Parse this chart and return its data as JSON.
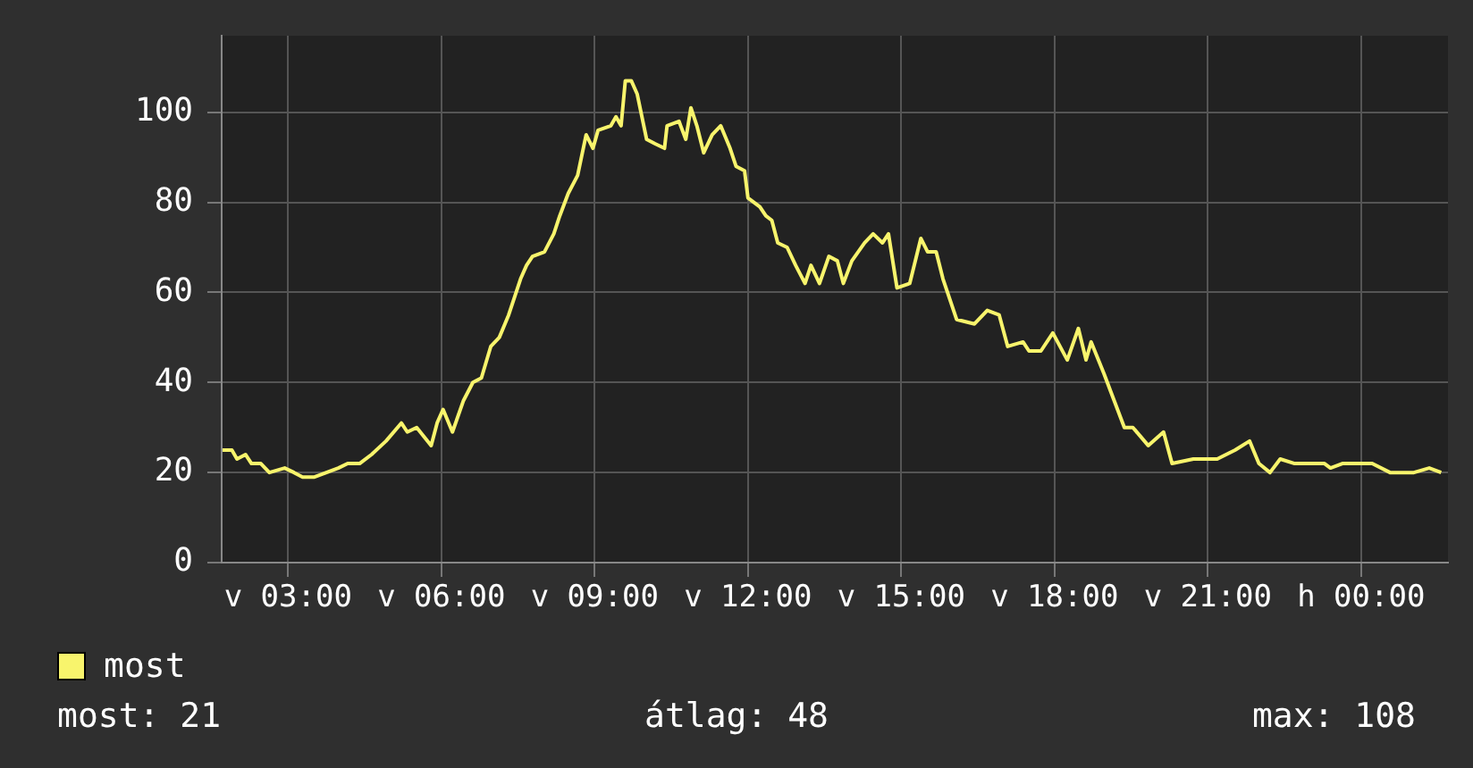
{
  "chart_data": {
    "type": "line",
    "x": [
      "--03-17T01:43",
      "--03-17T01:54",
      "--03-17T02:00",
      "--03-17T02:10",
      "--03-17T02:17",
      "--03-17T02:28",
      "--03-17T02:38",
      "--03-17T02:56",
      "--03-17T03:07",
      "--03-17T03:17",
      "--03-17T03:31",
      "--03-17T03:59",
      "--03-17T04:10",
      "--03-17T04:24",
      "--03-17T04:38",
      "--03-17T04:55",
      "--03-17T05:13",
      "--03-17T05:20",
      "--03-17T05:31",
      "--03-17T05:48",
      "--03-17T05:55",
      "--03-17T06:02",
      "--03-17T06:13",
      "--03-17T06:26",
      "--03-17T06:37",
      "--03-17T06:47",
      "--03-17T06:58",
      "--03-17T07:08",
      "--03-17T07:19",
      "--03-17T07:33",
      "--03-17T07:40",
      "--03-17T07:47",
      "--03-17T08:01",
      "--03-17T08:12",
      "--03-17T08:19",
      "--03-17T08:29",
      "--03-17T08:40",
      "--03-17T08:50",
      "--03-17T08:58",
      "--03-17T09:04",
      "--03-17T09:19",
      "--03-17T09:25",
      "--03-17T09:31",
      "--03-17T09:36",
      "--03-17T09:43",
      "--03-17T09:50",
      "--03-17T10:01",
      "--03-17T10:11",
      "--03-17T10:22",
      "--03-17T10:25",
      "--03-17T10:39",
      "--03-17T10:47",
      "--03-17T10:53",
      "--03-17T11:00",
      "--03-17T11:08",
      "--03-17T11:18",
      "--03-17T11:28",
      "--03-17T11:39",
      "--03-17T11:46",
      "--03-17T11:56",
      "--03-17T12:00",
      "--03-17T12:14",
      "--03-17T12:21",
      "--03-17T12:28",
      "--03-17T12:35",
      "--03-17T12:46",
      "--03-17T12:56",
      "--03-17T13:07",
      "--03-17T13:14",
      "--03-17T13:24",
      "--03-17T13:35",
      "--03-17T13:45",
      "--03-17T13:52",
      "--03-17T14:02",
      "--03-17T14:17",
      "--03-17T14:27",
      "--03-17T14:38",
      "--03-17T14:45",
      "--03-17T14:55",
      "--03-17T15:10",
      "--03-17T15:23",
      "--03-17T15:31",
      "--03-17T15:41",
      "--03-17T15:49",
      "--03-17T16:05",
      "--03-17T16:26",
      "--03-17T16:41",
      "--03-17T16:55",
      "--03-17T17:05",
      "--03-17T17:23",
      "--03-17T17:30",
      "--03-17T17:44",
      "--03-17T17:58",
      "--03-17T18:15",
      "--03-17T18:28",
      "--03-17T18:37",
      "--03-17T18:43",
      "--03-17T18:58",
      "--03-17T19:08",
      "--03-17T19:22",
      "--03-17T19:32",
      "--03-17T19:50",
      "--03-17T20:08",
      "--03-17T20:18",
      "--03-17T20:43",
      "--03-17T21:11",
      "--03-17T21:32",
      "--03-17T21:49",
      "--03-17T22:00",
      "--03-17T22:13",
      "--03-17T22:25",
      "--03-17T22:42",
      "--03-17T23:17",
      "--03-17T23:24",
      "--03-17T23:38",
      "--03-18T00:13",
      "--03-18T00:34",
      "--03-18T01:02",
      "--03-18T01:20",
      "--03-18T01:34"
    ],
    "series": [
      {
        "name": "most",
        "color": "#f8f46c",
        "values": [
          25,
          25,
          23,
          24,
          22,
          22,
          20,
          21,
          20,
          19,
          19,
          21,
          22,
          22,
          24,
          27,
          31,
          29,
          30,
          26,
          31,
          34,
          29,
          36,
          40,
          41,
          48,
          50,
          55,
          63,
          66,
          68,
          69,
          73,
          77,
          82,
          86,
          95,
          92,
          96,
          97,
          99,
          97,
          107,
          107,
          104,
          94,
          93,
          92,
          97,
          98,
          94,
          101,
          97,
          91,
          95,
          97,
          92,
          88,
          87,
          81,
          79,
          77,
          76,
          71,
          70,
          66,
          62,
          66,
          62,
          68,
          67,
          62,
          67,
          71,
          73,
          71,
          73,
          61,
          62,
          72,
          69,
          69,
          63,
          54,
          53,
          56,
          55,
          48,
          49,
          47,
          47,
          51,
          45,
          52,
          45,
          49,
          42,
          37,
          30,
          30,
          26,
          29,
          22,
          23,
          23,
          25,
          27,
          22,
          20,
          23,
          22,
          22,
          21,
          22,
          22,
          20,
          20,
          21,
          20
        ]
      }
    ],
    "xlim": [
      "--03-17T01:42",
      "--03-18T01:42"
    ],
    "xticks": [
      {
        "value": "--03-17T03:00",
        "label": "v 03:00"
      },
      {
        "value": "--03-17T06:00",
        "label": "v 06:00"
      },
      {
        "value": "--03-17T09:00",
        "label": "v 09:00"
      },
      {
        "value": "--03-17T12:00",
        "label": "v 12:00"
      },
      {
        "value": "--03-17T15:00",
        "label": "v 15:00"
      },
      {
        "value": "--03-17T18:00",
        "label": "v 18:00"
      },
      {
        "value": "--03-17T21:00",
        "label": "v 21:00"
      },
      {
        "value": "--03-18T00:00",
        "label": "h 00:00"
      }
    ],
    "ylim": [
      0,
      117
    ],
    "yticks": [
      0,
      20,
      40,
      60,
      80,
      100
    ],
    "grid": true,
    "legend": "bottom left",
    "annotations": [
      "most: 21",
      "átlag: 48",
      "max: 108"
    ]
  }
}
